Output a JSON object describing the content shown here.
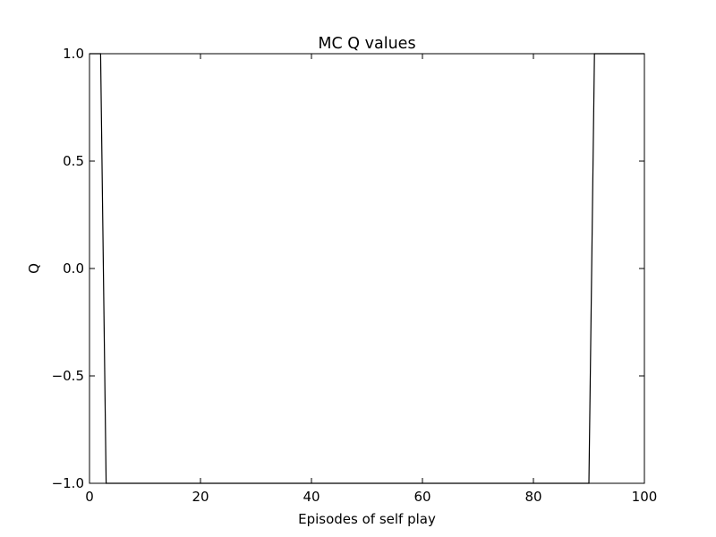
{
  "chart_data": {
    "type": "line",
    "title": "MC Q values",
    "xlabel": "Episodes of self play",
    "ylabel": "Q",
    "xlim": [
      0,
      100
    ],
    "ylim": [
      -1.0,
      1.0
    ],
    "x_ticks": [
      0,
      20,
      40,
      60,
      80,
      100
    ],
    "x_tick_labels": [
      "0",
      "20",
      "40",
      "60",
      "80",
      "100"
    ],
    "y_ticks": [
      1.0,
      0.5,
      0.0,
      -0.5,
      -1.0
    ],
    "y_tick_labels": [
      "1.0",
      "0.5",
      "0.0",
      "−0.5",
      "−1.0"
    ],
    "grid": false,
    "legend": "none",
    "series": [
      {
        "color": "#000000",
        "x": [
          0,
          1,
          2,
          3,
          4,
          10,
          20,
          30,
          40,
          50,
          60,
          70,
          80,
          89,
          90,
          91,
          92,
          95,
          100
        ],
        "y": [
          1.0,
          1.0,
          1.0,
          -1.0,
          -1.0,
          -1.0,
          -1.0,
          -1.0,
          -1.0,
          -1.0,
          -1.0,
          -1.0,
          -1.0,
          -1.0,
          -1.0,
          1.0,
          1.0,
          1.0,
          1.0
        ]
      }
    ]
  }
}
